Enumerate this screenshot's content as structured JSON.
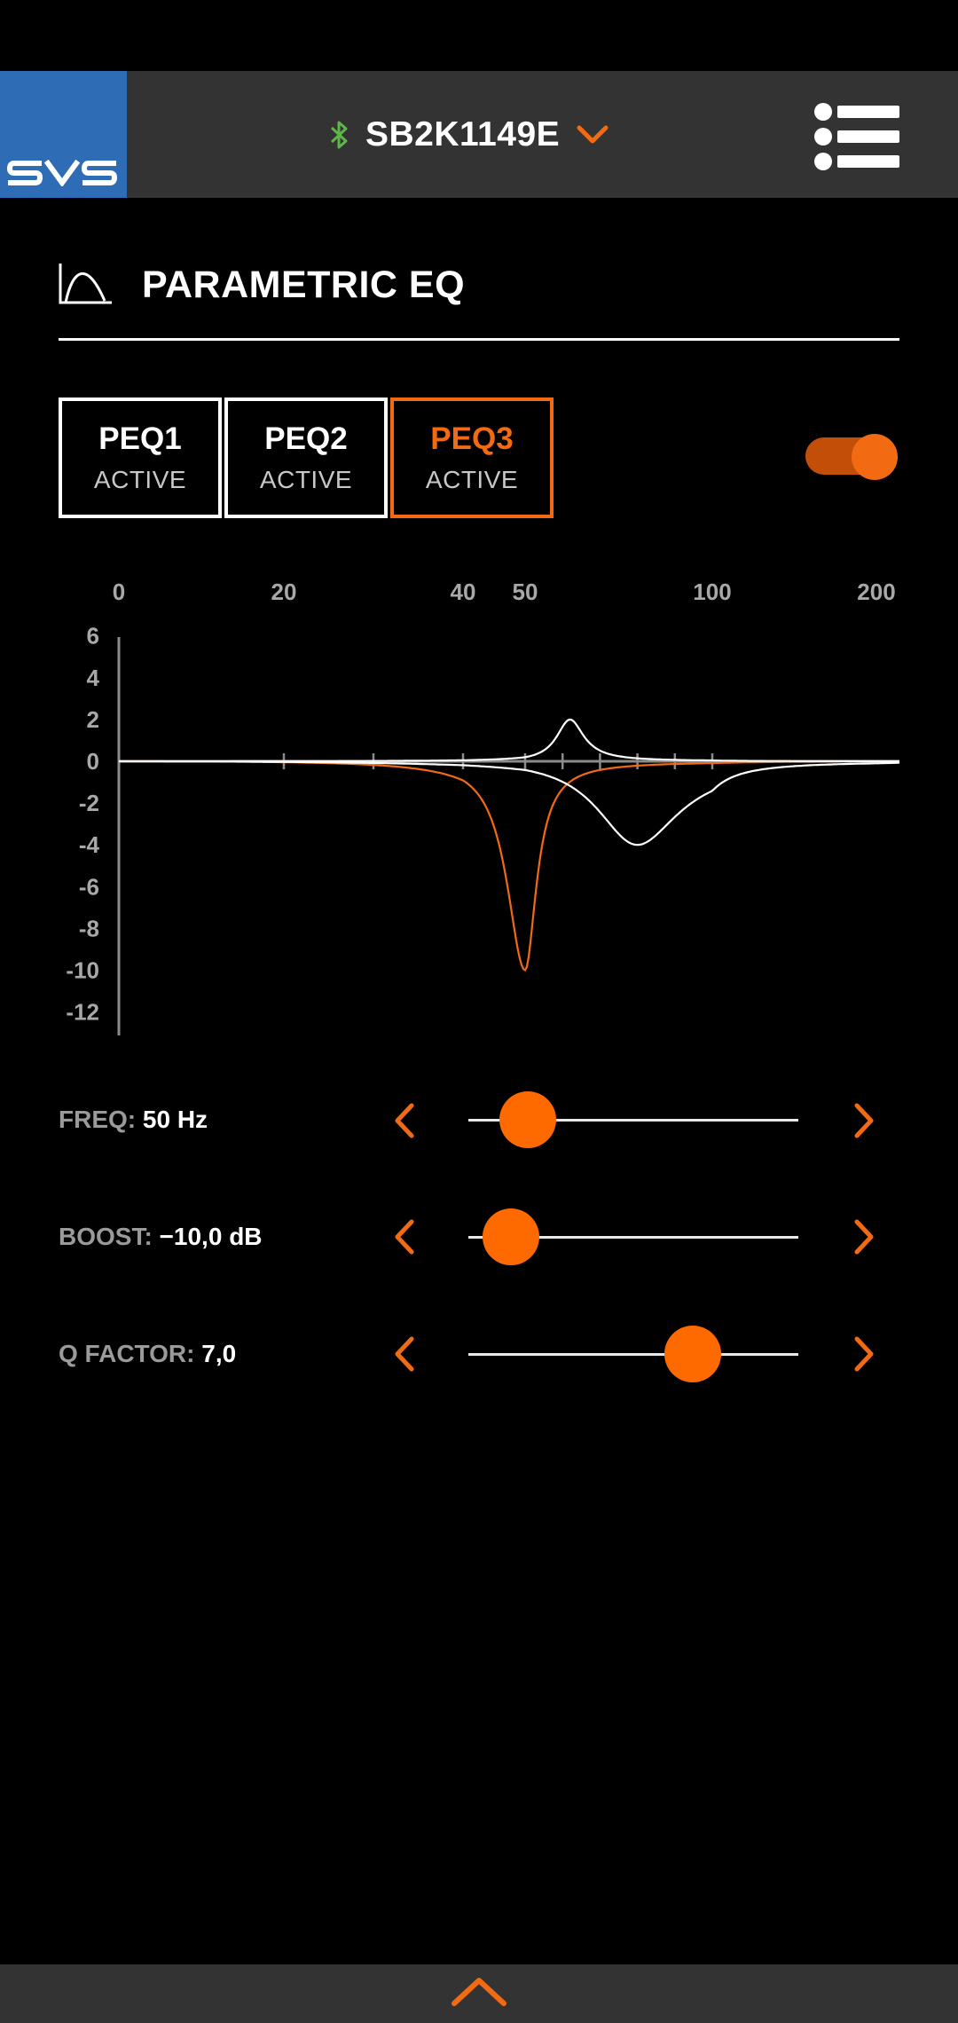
{
  "header": {
    "logo_text": "SVS",
    "device_name": "SB2K1149E"
  },
  "section": {
    "title": "PARAMETRIC EQ"
  },
  "peq_tabs": [
    {
      "label": "PEQ1",
      "status": "ACTIVE",
      "selected": false
    },
    {
      "label": "PEQ2",
      "status": "ACTIVE",
      "selected": false
    },
    {
      "label": "PEQ3",
      "status": "ACTIVE",
      "selected": true
    }
  ],
  "toggle": {
    "on": true
  },
  "colors": {
    "accent": "#f26a12",
    "bar": "#333333",
    "logo_bg": "#2e6db5",
    "bluetooth": "#5fb548"
  },
  "chart_data": {
    "type": "line",
    "x_ticks": [
      "0",
      "20",
      "40",
      "50",
      "100",
      "200"
    ],
    "y_ticks": [
      "6",
      "4",
      "2",
      "0",
      "-2",
      "-4",
      "-6",
      "-8",
      "-10",
      "-12"
    ],
    "ylim": [
      -12,
      6
    ],
    "series": [
      {
        "color": "#f26a12",
        "center_hz": 50,
        "gain_db": -10,
        "q": 7
      },
      {
        "color": "#ffffff",
        "center_hz": 62,
        "gain_db": 2,
        "q": 7
      },
      {
        "color": "#ffffff",
        "center_hz": 80,
        "gain_db": -4,
        "q": 3
      }
    ]
  },
  "controls": {
    "freq": {
      "label": "FREQ:",
      "value": "50 Hz",
      "level": 0.18
    },
    "boost": {
      "label": "BOOST:",
      "value": "−10,0 dB",
      "level": 0.13
    },
    "qfactor": {
      "label": "Q FACTOR:",
      "value": "7,0",
      "level": 0.68
    }
  }
}
